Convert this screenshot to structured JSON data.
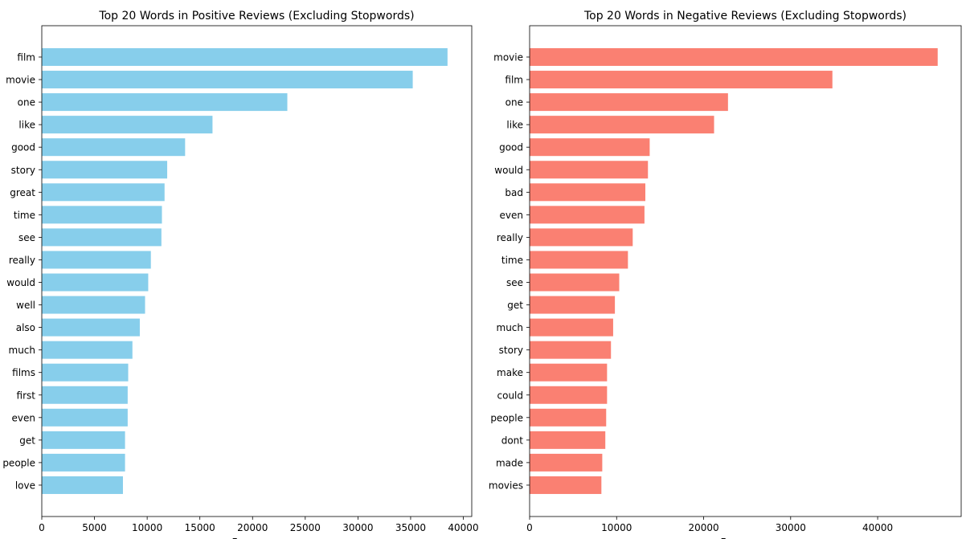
{
  "chart_data": [
    {
      "type": "bar",
      "orientation": "horizontal",
      "title": "Top 20 Words in Positive Reviews (Excluding Stopwords)",
      "xlabel": "Frequency",
      "ylabel": "",
      "xlim": [
        0,
        40800
      ],
      "xticks": [
        0,
        5000,
        10000,
        15000,
        20000,
        25000,
        30000,
        35000,
        40000
      ],
      "color": "#87ceeb",
      "grid": false,
      "categories": [
        "film",
        "movie",
        "one",
        "like",
        "good",
        "story",
        "great",
        "time",
        "see",
        "really",
        "would",
        "well",
        "also",
        "much",
        "films",
        "first",
        "even",
        "get",
        "people",
        "love"
      ],
      "values": [
        38500,
        35200,
        23300,
        16200,
        13600,
        11900,
        11650,
        11400,
        11350,
        10350,
        10100,
        9800,
        9300,
        8600,
        8200,
        8150,
        8150,
        7900,
        7900,
        7700
      ]
    },
    {
      "type": "bar",
      "orientation": "horizontal",
      "title": "Top 20 Words in Negative Reviews (Excluding Stopwords)",
      "xlabel": "Frequency",
      "ylabel": "",
      "xlim": [
        0,
        49600
      ],
      "xticks": [
        0,
        10000,
        20000,
        30000,
        40000
      ],
      "color": "#fa8072",
      "grid": false,
      "categories": [
        "movie",
        "film",
        "one",
        "like",
        "good",
        "would",
        "bad",
        "even",
        "really",
        "time",
        "see",
        "get",
        "much",
        "story",
        "make",
        "could",
        "people",
        "dont",
        "made",
        "movies"
      ],
      "values": [
        46900,
        34800,
        22800,
        21200,
        13800,
        13600,
        13300,
        13200,
        11850,
        11300,
        10300,
        9800,
        9600,
        9350,
        8900,
        8900,
        8800,
        8700,
        8350,
        8250
      ]
    }
  ]
}
